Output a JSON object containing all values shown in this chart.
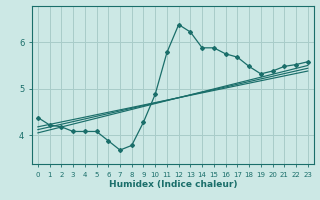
{
  "xlabel": "Humidex (Indice chaleur)",
  "ylabel": "",
  "bg_color": "#cce8e5",
  "line_color": "#1a6e6a",
  "grid_color": "#a8ccc9",
  "x_main": [
    0,
    1,
    2,
    3,
    4,
    5,
    6,
    7,
    8,
    9,
    10,
    11,
    12,
    13,
    14,
    15,
    16,
    17,
    18,
    19,
    20,
    21,
    22,
    23
  ],
  "y_main": [
    4.38,
    4.22,
    4.18,
    4.08,
    4.08,
    4.08,
    3.88,
    3.68,
    3.78,
    4.28,
    4.88,
    5.78,
    6.38,
    6.22,
    5.88,
    5.88,
    5.75,
    5.68,
    5.48,
    5.32,
    5.38,
    5.48,
    5.52,
    5.58
  ],
  "trend_lines": [
    {
      "x": [
        0,
        23
      ],
      "y": [
        4.05,
        5.5
      ]
    },
    {
      "x": [
        0,
        23
      ],
      "y": [
        4.12,
        5.44
      ]
    },
    {
      "x": [
        0,
        23
      ],
      "y": [
        4.18,
        5.38
      ]
    }
  ],
  "ylim": [
    3.38,
    6.78
  ],
  "xlim": [
    -0.5,
    23.5
  ],
  "yticks": [
    4,
    5,
    6
  ],
  "xticks": [
    0,
    1,
    2,
    3,
    4,
    5,
    6,
    7,
    8,
    9,
    10,
    11,
    12,
    13,
    14,
    15,
    16,
    17,
    18,
    19,
    20,
    21,
    22,
    23
  ]
}
